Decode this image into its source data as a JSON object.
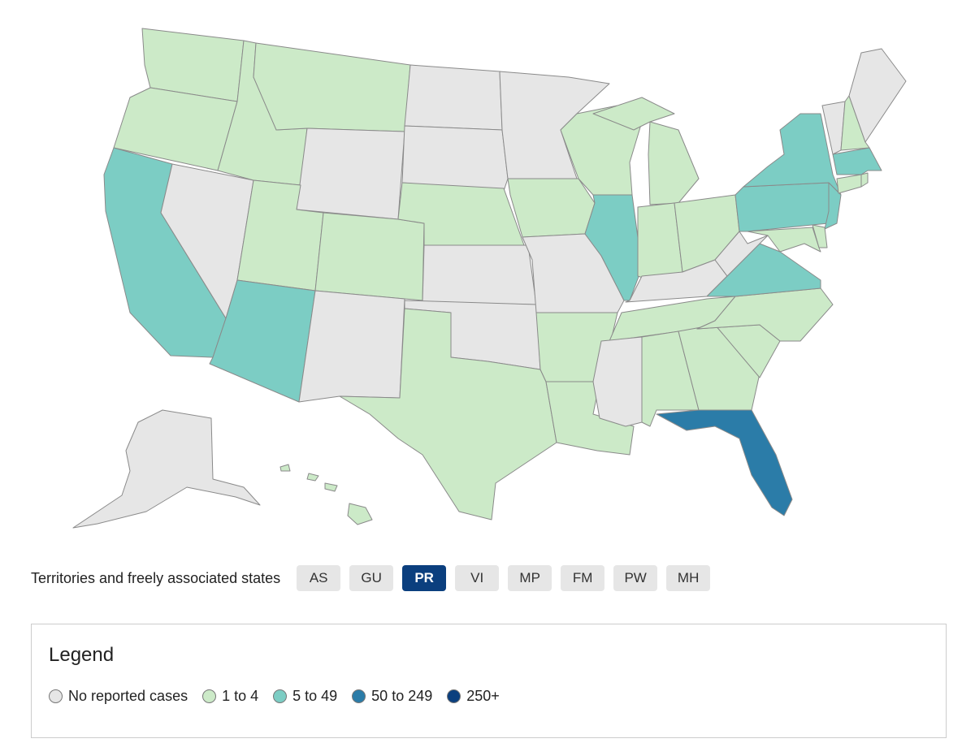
{
  "map": {
    "states": [
      1,
      1,
      2,
      0,
      1,
      1,
      0,
      1,
      1,
      2,
      0,
      0,
      0,
      1,
      0,
      0,
      1,
      0,
      1,
      0,
      1,
      1,
      1,
      2,
      1,
      1,
      1,
      0,
      1,
      0,
      1,
      1,
      3,
      1,
      1,
      2,
      0,
      2,
      2,
      2,
      1,
      1,
      1,
      1,
      2,
      0,
      1,
      0,
      0,
      1
    ]
  },
  "territories": {
    "label": "Territories and freely associated states",
    "items": [
      {
        "label": "AS"
      },
      {
        "label": "GU"
      },
      {
        "label": "PR",
        "selected": true
      },
      {
        "label": "VI"
      },
      {
        "label": "MP"
      },
      {
        "label": "FM"
      },
      {
        "label": "PW"
      },
      {
        "label": "MH"
      }
    ]
  },
  "legend": {
    "title": "Legend",
    "items": [
      {
        "label": "No reported cases",
        "color": "#e6e6e6"
      },
      {
        "label": "1 to 4",
        "color": "#cceac8"
      },
      {
        "label": "5 to 49",
        "color": "#7ccdc4"
      },
      {
        "label": "50 to 249",
        "color": "#2b7ca8"
      },
      {
        "label": "250+",
        "color": "#0b3f7e"
      }
    ]
  }
}
